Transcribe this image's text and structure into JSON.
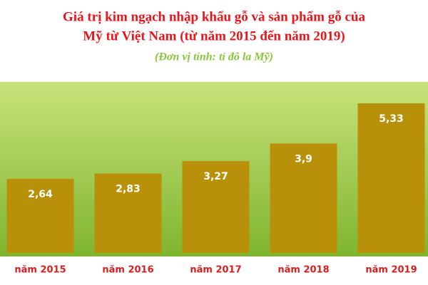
{
  "chart_data": {
    "type": "bar",
    "title": [
      "Giá trị kim ngạch nhập khẩu gỗ và sản phẩm gỗ của",
      "Mỹ từ Việt Nam (từ năm 2015 đến năm 2019)"
    ],
    "subtitle": "(Đơn vị tính: tỉ đô la Mỹ)",
    "categories": [
      "năm 2015",
      "năm 2016",
      "năm 2017",
      "năm 2018",
      "năm 2019"
    ],
    "values": [
      2.64,
      2.83,
      3.27,
      3.9,
      5.33
    ],
    "value_labels": [
      "2,64",
      "2,83",
      "3,27",
      "3,9",
      "5,33"
    ],
    "color": "#b8900a"
  }
}
